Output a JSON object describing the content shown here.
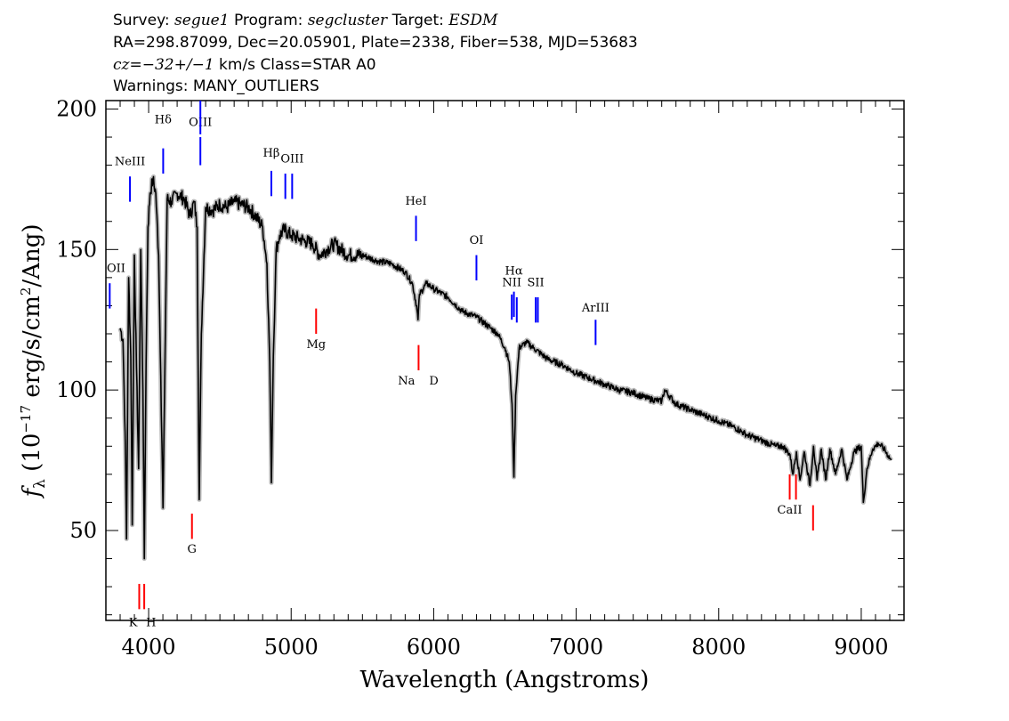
{
  "header": {
    "line1": {
      "survey_label": "Survey:",
      "survey": "segue1",
      "program_label": "Program:",
      "program": "segcluster",
      "target_label": "Target:",
      "target": "ESDM"
    },
    "line2": "RA=298.87099, Dec=20.05901, Plate=2338, Fiber=538, MJD=53683",
    "line3": {
      "cz": "cz=−32+/−1",
      "rest": "km/s Class=STAR A0"
    },
    "line4": "Warnings: MANY_OUTLIERS"
  },
  "chart_data": {
    "type": "line",
    "xlabel": "Wavelength (Angstroms)",
    "ylabel": "f_λ (10^-17 erg/s/cm²/Ang)",
    "xlim": [
      3700,
      9300
    ],
    "ylim": [
      18,
      203
    ],
    "xticks": [
      4000,
      5000,
      6000,
      7000,
      8000,
      9000
    ],
    "yticks": [
      50,
      100,
      150,
      200
    ],
    "grid": false,
    "colors": {
      "spectrum": "#000000",
      "error_band": "#b8b8b8",
      "emission_lines": "#0000ff",
      "absorption_lines": "#ff0000"
    },
    "series": [
      {
        "x": [
          3800,
          3820,
          3835,
          3845,
          3860,
          3875,
          3885,
          3900,
          3915,
          3930,
          3945,
          3960,
          3970,
          3982,
          3995,
          4010,
          4030,
          4050,
          4070,
          4085,
          4101,
          4115,
          4130,
          4160,
          4200,
          4250,
          4290,
          4320,
          4340,
          4355,
          4370,
          4400,
          4450,
          4500,
          4550,
          4600,
          4650,
          4700,
          4750,
          4800,
          4830,
          4850,
          4861,
          4875,
          4895,
          4920,
          4950,
          5000,
          5050,
          5100,
          5150,
          5200,
          5250,
          5300,
          5400,
          5500,
          5600,
          5700,
          5800,
          5850,
          5880,
          5890,
          5900,
          5950,
          6000,
          6100,
          6200,
          6300,
          6400,
          6450,
          6500,
          6530,
          6550,
          6563,
          6575,
          6600,
          6650,
          6700,
          6800,
          6900,
          7000,
          7100,
          7200,
          7300,
          7400,
          7500,
          7600,
          7620,
          7700,
          7800,
          7900,
          8000,
          8100,
          8200,
          8300,
          8400,
          8450,
          8500,
          8520,
          8545,
          8570,
          8600,
          8640,
          8665,
          8690,
          8720,
          8750,
          8780,
          8820,
          8863,
          8900,
          8950,
          9000,
          9015,
          9040,
          9080,
          9120,
          9160,
          9210
        ],
        "values": [
          122,
          118,
          85,
          47,
          140,
          112,
          52,
          148,
          108,
          72,
          150,
          100,
          40,
          110,
          158,
          170,
          175,
          170,
          148,
          105,
          58,
          112,
          168,
          167,
          170,
          168,
          162,
          167,
          158,
          61,
          120,
          165,
          164,
          166,
          165,
          167,
          166,
          165,
          162,
          158,
          145,
          110,
          67,
          112,
          150,
          155,
          157,
          155,
          154,
          153,
          152,
          148,
          150,
          152,
          148,
          148,
          146,
          145,
          142,
          138,
          130,
          125,
          134,
          138,
          136,
          133,
          128,
          126,
          122,
          120,
          115,
          110,
          95,
          69,
          98,
          115,
          117,
          115,
          111,
          109,
          106,
          104,
          102,
          100,
          99,
          97,
          96,
          100,
          95,
          93,
          91,
          89,
          87,
          84,
          82,
          80,
          80,
          77,
          70,
          78,
          68,
          78,
          66,
          80,
          68,
          79,
          68,
          79,
          70,
          79,
          68,
          78,
          80,
          60,
          72,
          79,
          81,
          79,
          75
        ],
        "name": ""
      }
    ],
    "emission_lines": [
      {
        "label": "OII",
        "x": 3727,
        "y0": 129,
        "y1": 138,
        "label_y": 142
      },
      {
        "label": "NeIII",
        "x": 3869,
        "y0": 167,
        "y1": 176,
        "label_y": 180
      },
      {
        "label": "Hδ",
        "x": 4102,
        "y0": 186,
        "y1": 177,
        "label_y": 195
      },
      {
        "label": "OIII",
        "x": 4363,
        "y0": 180,
        "y1": 190,
        "label_y": 194
      },
      {
        "label": "OIII",
        "x": 4363,
        "y0": 191,
        "y1": 203,
        "label_y": 203,
        "no_label": true
      },
      {
        "label": "Hβ",
        "x": 4861,
        "y0": 169,
        "y1": 178,
        "label_y": 183
      },
      {
        "label": "OIII",
        "x": 4959,
        "y0": 168,
        "y1": 177,
        "label_y": 181,
        "no_label": true
      },
      {
        "label": "OIII",
        "x": 5007,
        "y0": 168,
        "y1": 177,
        "label_y": 181
      },
      {
        "label": "HeI",
        "x": 5876,
        "y0": 153,
        "y1": 162,
        "label_y": 166
      },
      {
        "label": "OI",
        "x": 6300,
        "y0": 139,
        "y1": 148,
        "label_y": 152
      },
      {
        "label": "NII",
        "x": 6548,
        "y0": 125,
        "y1": 134,
        "label_y": 137
      },
      {
        "label": "Hα",
        "x": 6563,
        "y0": 126,
        "y1": 135,
        "label_y": 141
      },
      {
        "label": "NII",
        "x": 6583,
        "y0": 124,
        "y1": 133,
        "label_y": 137,
        "no_label": true
      },
      {
        "label": "SII",
        "x": 6716,
        "y0": 124,
        "y1": 133,
        "label_y": 137
      },
      {
        "label": "SII",
        "x": 6731,
        "y0": 124,
        "y1": 133,
        "label_y": 137,
        "no_label": true
      },
      {
        "label": "ArIII",
        "x": 7136,
        "y0": 116,
        "y1": 125,
        "label_y": 128
      }
    ],
    "absorption_lines": [
      {
        "label": "K",
        "x": 3934,
        "y0": 22,
        "y1": 31,
        "label_y": 16
      },
      {
        "label": "H",
        "x": 3969,
        "y0": 22,
        "y1": 31,
        "label_y": 16
      },
      {
        "label": "G",
        "x": 4304,
        "y0": 47,
        "y1": 56,
        "label_y": 42
      },
      {
        "label": "Mg",
        "x": 5175,
        "y0": 120,
        "y1": 129,
        "label_y": 115
      },
      {
        "label": "Na",
        "x": 5894,
        "y0": 107,
        "y1": 116,
        "label_y": 102
      },
      {
        "label": "D",
        "x": 5894,
        "y0": 107,
        "y1": 116,
        "label_y": 102,
        "no_line": true
      },
      {
        "label": "CaII",
        "x": 8498,
        "y0": 61,
        "y1": 70,
        "label_y": 56
      },
      {
        "label": "CaII",
        "x": 8542,
        "y0": 61,
        "y1": 70,
        "label_y": 56,
        "no_label": true
      },
      {
        "label": "CaII",
        "x": 8662,
        "y0": 50,
        "y1": 59,
        "label_y": 56,
        "no_label": true
      }
    ]
  }
}
